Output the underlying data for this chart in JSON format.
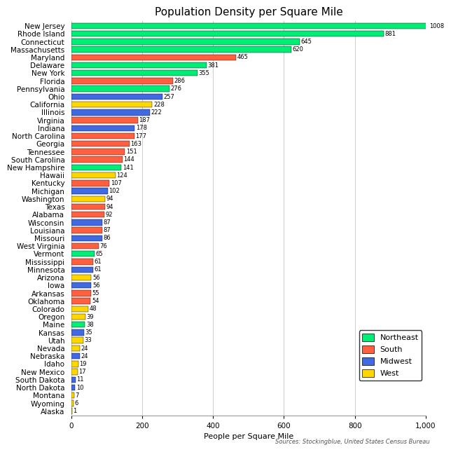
{
  "title": "Population Density per Square Mile",
  "xlabel": "People per Square Mile",
  "source": "Sources: Stockingblue, United States Census Bureau",
  "states": [
    "New Jersey",
    "Rhode Island",
    "Connecticut",
    "Massachusetts",
    "Maryland",
    "Delaware",
    "New York",
    "Florida",
    "Pennsylvania",
    "Ohio",
    "California",
    "Illinois",
    "Virginia",
    "Indiana",
    "North Carolina",
    "Georgia",
    "Tennessee",
    "South Carolina",
    "New Hampshire",
    "Hawaii",
    "Kentucky",
    "Michigan",
    "Washington",
    "Texas",
    "Alabama",
    "Wisconsin",
    "Louisiana",
    "Missouri",
    "West Virginia",
    "Vermont",
    "Mississippi",
    "Minnesota",
    "Arizona",
    "Iowa",
    "Arkansas",
    "Oklahoma",
    "Colorado",
    "Oregon",
    "Maine",
    "Kansas",
    "Utah",
    "Nevada",
    "Nebraska",
    "Idaho",
    "New Mexico",
    "South Dakota",
    "North Dakota",
    "Montana",
    "Wyoming",
    "Alaska"
  ],
  "values": [
    1008,
    881,
    645,
    620,
    465,
    381,
    355,
    286,
    276,
    257,
    228,
    222,
    187,
    178,
    177,
    163,
    151,
    144,
    141,
    124,
    107,
    102,
    94,
    94,
    92,
    87,
    87,
    86,
    76,
    65,
    61,
    61,
    56,
    56,
    55,
    54,
    48,
    39,
    38,
    35,
    33,
    24,
    24,
    19,
    17,
    11,
    10,
    7,
    6,
    1
  ],
  "regions": [
    "Northeast",
    "Northeast",
    "Northeast",
    "Northeast",
    "South",
    "Northeast",
    "Northeast",
    "South",
    "Northeast",
    "Midwest",
    "West",
    "Midwest",
    "South",
    "Midwest",
    "South",
    "South",
    "South",
    "South",
    "Northeast",
    "West",
    "South",
    "Midwest",
    "West",
    "South",
    "South",
    "Midwest",
    "South",
    "Midwest",
    "South",
    "Northeast",
    "South",
    "Midwest",
    "West",
    "Midwest",
    "South",
    "South",
    "West",
    "West",
    "Northeast",
    "Midwest",
    "West",
    "West",
    "Midwest",
    "West",
    "West",
    "Midwest",
    "Midwest",
    "West",
    "West",
    "West"
  ],
  "region_colors": {
    "Northeast": "#00EE76",
    "South": "#FF6040",
    "Midwest": "#4169E1",
    "West": "#FFD700"
  },
  "xlim": [
    0,
    1000
  ],
  "xticks": [
    0,
    200,
    400,
    600,
    800,
    1000
  ],
  "xtick_labels": [
    "0",
    "200",
    "400",
    "600",
    "800",
    "1,000"
  ],
  "bar_height": 0.75,
  "title_fontsize": 11,
  "label_fontsize": 7.5,
  "tick_fontsize": 7.5,
  "value_fontsize": 6,
  "legend_fontsize": 8,
  "source_fontsize": 6,
  "background_color": "#FFFFFF",
  "grid_color": "#CCCCCC"
}
